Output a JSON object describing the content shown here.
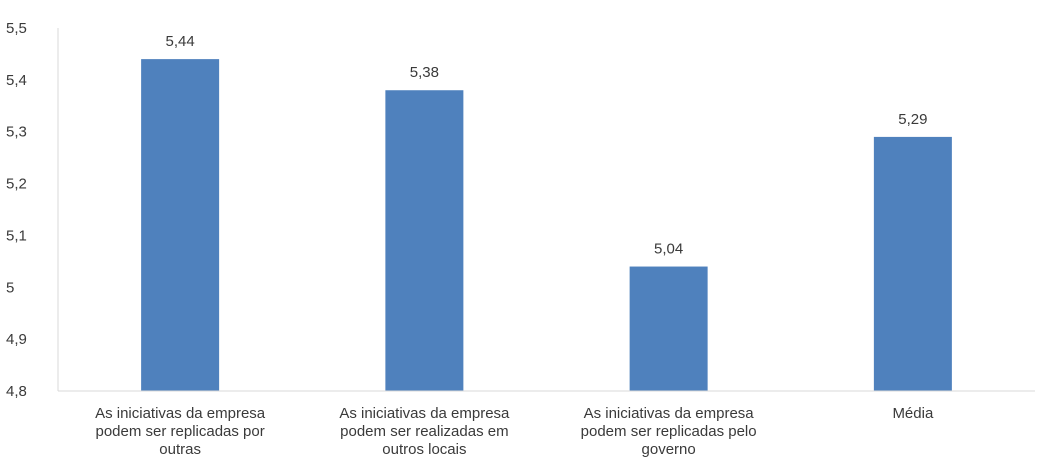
{
  "chart_data": {
    "type": "bar",
    "categories": [
      "As iniciativas da empresa podem ser replicadas por outras",
      "As iniciativas da empresa podem ser realizadas em outros locais",
      "As iniciativas da empresa podem ser replicadas pelo governo",
      "Média"
    ],
    "category_lines": [
      [
        "As iniciativas da empresa",
        "podem ser replicadas por",
        "outras"
      ],
      [
        "As iniciativas da empresa",
        "podem ser realizadas em",
        "outros locais"
      ],
      [
        "As iniciativas da empresa",
        "podem ser replicadas pelo",
        "governo"
      ],
      [
        "Média"
      ]
    ],
    "values": [
      5.44,
      5.38,
      5.04,
      5.29
    ],
    "value_labels": [
      "5,44",
      "5,38",
      "5,04",
      "5,29"
    ],
    "ylim": [
      4.8,
      5.5
    ],
    "yticks": [
      4.8,
      4.9,
      5,
      5.1,
      5.2,
      5.3,
      5.4,
      5.5
    ],
    "ytick_labels": [
      "4,8",
      "4,9",
      "5",
      "5,1",
      "5,2",
      "5,3",
      "5,4",
      "5,5"
    ],
    "title": "",
    "xlabel": "",
    "ylabel": "",
    "grid": false,
    "bar_color": "#4f81bd",
    "axis_color": "#d9d9d9"
  }
}
